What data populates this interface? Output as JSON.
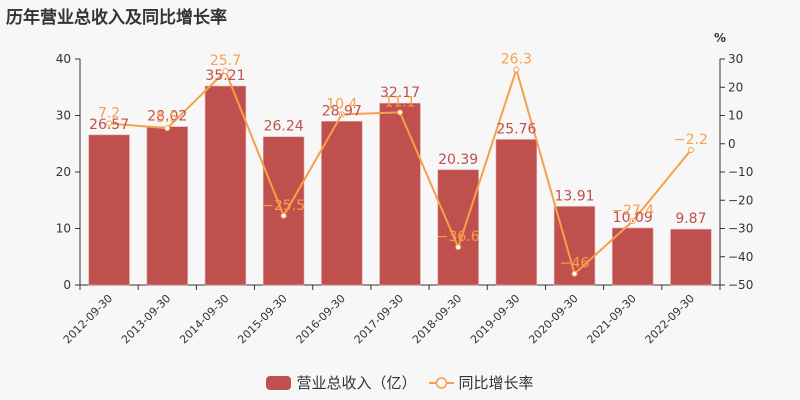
{
  "title": "历年营业总收入及同比增长率",
  "colors": {
    "bar": "#c0504d",
    "line": "#f5a04a"
  },
  "legend": {
    "bar_label": "营业总收入（亿）",
    "line_label": "同比增长率"
  },
  "right_axis_unit": "%",
  "chart_data": {
    "type": "bar+line",
    "title": "历年营业总收入及同比增长率",
    "categories": [
      "2012-09-30",
      "2013-09-30",
      "2014-09-30",
      "2015-09-30",
      "2016-09-30",
      "2017-09-30",
      "2018-09-30",
      "2019-09-30",
      "2020-09-30",
      "2021-09-30",
      "2022-09-30"
    ],
    "series": [
      {
        "name": "营业总收入（亿）",
        "type": "bar",
        "axis": "left",
        "values": [
          26.57,
          28.02,
          35.21,
          26.24,
          28.97,
          32.17,
          20.39,
          25.76,
          13.91,
          10.09,
          9.87
        ]
      },
      {
        "name": "同比增长率",
        "type": "line",
        "axis": "right",
        "values": [
          7.2,
          5.5,
          25.7,
          -25.5,
          10.4,
          11.1,
          -36.6,
          26.3,
          -46,
          -27.4,
          -2.2
        ]
      }
    ],
    "left_axis": {
      "ylim": [
        0,
        40
      ],
      "ticks": [
        0,
        10,
        20,
        30,
        40
      ]
    },
    "right_axis": {
      "ylim": [
        -50,
        30
      ],
      "ticks": [
        -50,
        -40,
        -30,
        -20,
        -10,
        0,
        10,
        20,
        30
      ],
      "unit": "%"
    },
    "grid": false,
    "legend_position": "bottom"
  }
}
